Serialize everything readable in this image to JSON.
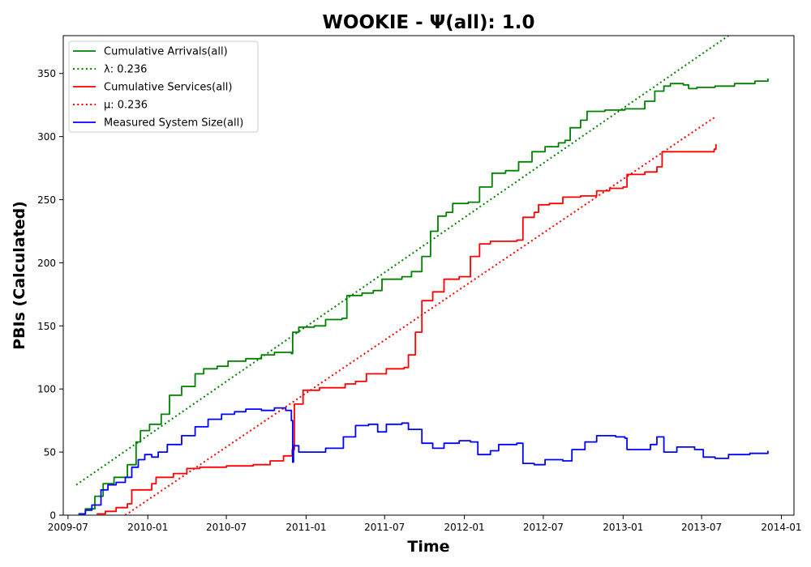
{
  "chart_data": {
    "type": "line",
    "title": "WOOKIE -  Ψ(all): 1.0",
    "xlabel": "Time",
    "ylabel": "PBIs (Calculated)",
    "xlim": [
      "2009-06-20",
      "2014-01-30"
    ],
    "ylim": [
      0,
      380
    ],
    "x_ticks": [
      "2009-07",
      "2010-01",
      "2010-07",
      "2011-01",
      "2011-07",
      "2012-01",
      "2012-07",
      "2013-01",
      "2013-07",
      "2014-01"
    ],
    "y_ticks": [
      0,
      50,
      100,
      150,
      200,
      250,
      300,
      350
    ],
    "grid": false,
    "legend_position": "top-left",
    "series": [
      {
        "name": "Cumulative Arrivals(all)",
        "color": "#008000",
        "style": "solid",
        "points": [
          [
            "2009-07-25",
            1
          ],
          [
            "2009-08-10",
            5
          ],
          [
            "2009-09-01",
            15
          ],
          [
            "2009-09-20",
            25
          ],
          [
            "2009-10-15",
            30
          ],
          [
            "2009-11-15",
            40
          ],
          [
            "2009-12-05",
            58
          ],
          [
            "2009-12-15",
            67
          ],
          [
            "2010-01-05",
            72
          ],
          [
            "2010-02-01",
            80
          ],
          [
            "2010-02-20",
            95
          ],
          [
            "2010-03-20",
            102
          ],
          [
            "2010-04-20",
            112
          ],
          [
            "2010-05-10",
            116
          ],
          [
            "2010-06-10",
            118
          ],
          [
            "2010-07-05",
            122
          ],
          [
            "2010-08-15",
            124
          ],
          [
            "2010-09-20",
            127
          ],
          [
            "2010-10-20",
            129
          ],
          [
            "2010-11-20",
            129
          ],
          [
            "2010-11-28",
            128
          ],
          [
            "2010-12-01",
            145
          ],
          [
            "2010-12-15",
            149
          ],
          [
            "2011-01-20",
            150
          ],
          [
            "2011-02-15",
            155
          ],
          [
            "2011-03-25",
            156
          ],
          [
            "2011-04-05",
            174
          ],
          [
            "2011-05-10",
            176
          ],
          [
            "2011-06-05",
            178
          ],
          [
            "2011-06-25",
            187
          ],
          [
            "2011-08-10",
            189
          ],
          [
            "2011-09-01",
            193
          ],
          [
            "2011-09-25",
            205
          ],
          [
            "2011-10-15",
            225
          ],
          [
            "2011-11-01",
            237
          ],
          [
            "2011-11-20",
            240
          ],
          [
            "2011-12-05",
            247
          ],
          [
            "2012-01-10",
            248
          ],
          [
            "2012-02-05",
            260
          ],
          [
            "2012-03-05",
            271
          ],
          [
            "2012-04-05",
            273
          ],
          [
            "2012-05-05",
            280
          ],
          [
            "2012-06-05",
            288
          ],
          [
            "2012-07-05",
            292
          ],
          [
            "2012-08-05",
            295
          ],
          [
            "2012-08-20",
            297
          ],
          [
            "2012-09-01",
            307
          ],
          [
            "2012-09-25",
            313
          ],
          [
            "2012-10-10",
            320
          ],
          [
            "2012-11-20",
            321
          ],
          [
            "2013-01-05",
            322
          ],
          [
            "2013-02-20",
            328
          ],
          [
            "2013-03-15",
            336
          ],
          [
            "2013-04-05",
            340
          ],
          [
            "2013-04-20",
            342
          ],
          [
            "2013-05-20",
            341
          ],
          [
            "2013-06-01",
            338
          ],
          [
            "2013-06-20",
            339
          ],
          [
            "2013-08-01",
            340
          ],
          [
            "2013-09-15",
            342
          ],
          [
            "2013-11-01",
            344
          ],
          [
            "2013-12-01",
            346
          ]
        ]
      },
      {
        "name": "λ: 0.236",
        "color": "#008000",
        "style": "dotted",
        "points": [
          [
            "2009-07-20",
            24
          ],
          [
            "2013-09-01",
            380
          ]
        ]
      },
      {
        "name": "Cumulative Services(all)",
        "color": "#ff0000",
        "style": "solid",
        "points": [
          [
            "2009-09-05",
            1
          ],
          [
            "2009-09-25",
            3
          ],
          [
            "2009-10-20",
            6
          ],
          [
            "2009-11-15",
            9
          ],
          [
            "2009-11-25",
            20
          ],
          [
            "2010-01-10",
            25
          ],
          [
            "2010-01-20",
            30
          ],
          [
            "2010-03-01",
            33
          ],
          [
            "2010-04-01",
            37
          ],
          [
            "2010-05-01",
            38
          ],
          [
            "2010-07-01",
            39
          ],
          [
            "2010-09-01",
            40
          ],
          [
            "2010-10-10",
            43
          ],
          [
            "2010-11-10",
            47
          ],
          [
            "2010-11-30",
            52
          ],
          [
            "2010-12-05",
            88
          ],
          [
            "2010-12-25",
            99
          ],
          [
            "2011-02-01",
            101
          ],
          [
            "2011-04-01",
            104
          ],
          [
            "2011-04-25",
            106
          ],
          [
            "2011-05-20",
            112
          ],
          [
            "2011-07-05",
            116
          ],
          [
            "2011-08-15",
            117
          ],
          [
            "2011-08-25",
            127
          ],
          [
            "2011-09-10",
            145
          ],
          [
            "2011-09-25",
            170
          ],
          [
            "2011-10-20",
            177
          ],
          [
            "2011-11-15",
            187
          ],
          [
            "2011-12-20",
            189
          ],
          [
            "2012-01-15",
            205
          ],
          [
            "2012-02-05",
            215
          ],
          [
            "2012-03-01",
            217
          ],
          [
            "2012-05-01",
            218
          ],
          [
            "2012-05-15",
            236
          ],
          [
            "2012-06-10",
            240
          ],
          [
            "2012-06-20",
            246
          ],
          [
            "2012-07-15",
            247
          ],
          [
            "2012-08-15",
            252
          ],
          [
            "2012-09-25",
            253
          ],
          [
            "2012-11-01",
            257
          ],
          [
            "2012-12-01",
            259
          ],
          [
            "2013-01-01",
            260
          ],
          [
            "2013-01-10",
            270
          ],
          [
            "2013-02-20",
            272
          ],
          [
            "2013-03-20",
            276
          ],
          [
            "2013-04-01",
            288
          ],
          [
            "2013-07-30",
            290
          ],
          [
            "2013-08-03",
            294
          ]
        ]
      },
      {
        "name": "μ: 0.236",
        "color": "#ff0000",
        "style": "dotted",
        "points": [
          [
            "2009-11-10",
            0
          ],
          [
            "2013-08-03",
            316
          ]
        ]
      },
      {
        "name": "Measured System Size(all)",
        "color": "#0000ff",
        "style": "solid",
        "points": [
          [
            "2009-07-25",
            1
          ],
          [
            "2009-08-10",
            4
          ],
          [
            "2009-08-25",
            8
          ],
          [
            "2009-09-15",
            20
          ],
          [
            "2009-10-01",
            24
          ],
          [
            "2009-10-20",
            26
          ],
          [
            "2009-11-10",
            30
          ],
          [
            "2009-11-25",
            38
          ],
          [
            "2009-12-10",
            44
          ],
          [
            "2009-12-25",
            48
          ],
          [
            "2010-01-10",
            46
          ],
          [
            "2010-01-25",
            50
          ],
          [
            "2010-02-15",
            56
          ],
          [
            "2010-03-20",
            63
          ],
          [
            "2010-04-20",
            70
          ],
          [
            "2010-05-20",
            76
          ],
          [
            "2010-06-20",
            80
          ],
          [
            "2010-07-20",
            82
          ],
          [
            "2010-08-15",
            84
          ],
          [
            "2010-09-20",
            83
          ],
          [
            "2010-10-20",
            85
          ],
          [
            "2010-11-15",
            83
          ],
          [
            "2010-11-28",
            75
          ],
          [
            "2010-12-01",
            42
          ],
          [
            "2010-12-03",
            55
          ],
          [
            "2010-12-15",
            50
          ],
          [
            "2011-01-15",
            50
          ],
          [
            "2011-02-15",
            53
          ],
          [
            "2011-03-20",
            53
          ],
          [
            "2011-03-28",
            62
          ],
          [
            "2011-04-25",
            71
          ],
          [
            "2011-05-25",
            72
          ],
          [
            "2011-06-15",
            66
          ],
          [
            "2011-07-05",
            72
          ],
          [
            "2011-08-10",
            73
          ],
          [
            "2011-08-25",
            68
          ],
          [
            "2011-09-25",
            57
          ],
          [
            "2011-10-20",
            53
          ],
          [
            "2011-11-15",
            57
          ],
          [
            "2011-12-20",
            59
          ],
          [
            "2012-01-15",
            58
          ],
          [
            "2012-02-01",
            48
          ],
          [
            "2012-03-01",
            51
          ],
          [
            "2012-03-20",
            56
          ],
          [
            "2012-05-01",
            57
          ],
          [
            "2012-05-15",
            41
          ],
          [
            "2012-06-10",
            40
          ],
          [
            "2012-07-05",
            44
          ],
          [
            "2012-08-15",
            43
          ],
          [
            "2012-09-05",
            52
          ],
          [
            "2012-10-05",
            58
          ],
          [
            "2012-11-01",
            63
          ],
          [
            "2012-12-15",
            62
          ],
          [
            "2013-01-05",
            61
          ],
          [
            "2013-01-10",
            52
          ],
          [
            "2013-03-05",
            56
          ],
          [
            "2013-03-20",
            62
          ],
          [
            "2013-04-05",
            50
          ],
          [
            "2013-05-05",
            54
          ],
          [
            "2013-06-15",
            52
          ],
          [
            "2013-07-05",
            46
          ],
          [
            "2013-08-01",
            45
          ],
          [
            "2013-09-01",
            48
          ],
          [
            "2013-10-20",
            49
          ],
          [
            "2013-12-01",
            51
          ]
        ]
      }
    ]
  }
}
